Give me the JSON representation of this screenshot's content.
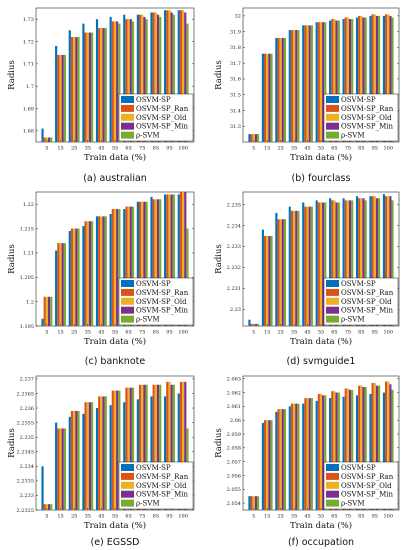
{
  "legend": [
    "OSVM-SP",
    "OSVM-SP_Ran",
    "OSVM-SP_Old",
    "OSVM-SP_Min",
    "ρ-SVM"
  ],
  "colors": [
    "#0072BD",
    "#D95319",
    "#EDB120",
    "#7E2F8E",
    "#77AC30"
  ],
  "chart_data": [
    {
      "type": "bar",
      "caption": "(a) australian",
      "xlabel": "Train data (%)",
      "ylabel": "Radius",
      "categories": [
        "5",
        "15",
        "25",
        "35",
        "45",
        "55",
        "65",
        "75",
        "85",
        "95",
        "100"
      ],
      "ylim": [
        1.675,
        1.735
      ],
      "yticks": [
        1.68,
        1.69,
        1.7,
        1.71,
        1.72,
        1.73
      ],
      "ytick_labels": [
        "1.68",
        "1.69",
        "1.7",
        "1.71",
        "1.72",
        "1.73"
      ],
      "series": [
        {
          "name": "OSVM-SP",
          "values": [
            1.681,
            1.718,
            1.725,
            1.728,
            1.73,
            1.731,
            1.732,
            1.732,
            1.733,
            1.734,
            1.734
          ]
        },
        {
          "name": "OSVM-SP_Ran",
          "values": [
            1.677,
            1.714,
            1.722,
            1.724,
            1.726,
            1.729,
            1.73,
            1.732,
            1.733,
            1.734,
            1.734
          ]
        },
        {
          "name": "OSVM-SP_Old",
          "values": [
            1.677,
            1.714,
            1.722,
            1.724,
            1.726,
            1.729,
            1.73,
            1.732,
            1.733,
            1.734,
            1.734
          ]
        },
        {
          "name": "OSVM-SP_Min",
          "values": [
            1.677,
            1.714,
            1.722,
            1.724,
            1.726,
            1.729,
            1.73,
            1.731,
            1.732,
            1.733,
            1.733
          ]
        },
        {
          "name": "ρ-SVM",
          "values": [
            1.677,
            1.714,
            1.722,
            1.724,
            1.726,
            1.728,
            1.729,
            1.73,
            1.731,
            1.732,
            1.728
          ]
        }
      ]
    },
    {
      "type": "bar",
      "caption": "(b) fourclass",
      "xlabel": "Train data (%)",
      "ylabel": "Radius",
      "categories": [
        "5",
        "15",
        "25",
        "35",
        "45",
        "55",
        "65",
        "75",
        "85",
        "95",
        "100"
      ],
      "ylim": [
        31.2,
        32.05
      ],
      "yticks": [
        31.3,
        31.4,
        31.5,
        31.6,
        31.7,
        31.8,
        31.9,
        32
      ],
      "ytick_labels": [
        "31.3",
        "31.4",
        "31.5",
        "31.6",
        "31.7",
        "31.8",
        "31.9",
        "32"
      ],
      "series": [
        {
          "name": "OSVM-SP",
          "values": [
            31.25,
            31.76,
            31.86,
            31.91,
            31.94,
            31.96,
            31.97,
            31.98,
            31.99,
            32.0,
            32.0
          ]
        },
        {
          "name": "OSVM-SP_Ran",
          "values": [
            31.25,
            31.76,
            31.86,
            31.91,
            31.94,
            31.96,
            31.98,
            31.99,
            32.0,
            32.01,
            32.01
          ]
        },
        {
          "name": "OSVM-SP_Old",
          "values": [
            31.25,
            31.76,
            31.86,
            31.91,
            31.94,
            31.96,
            31.98,
            31.99,
            32.0,
            32.01,
            32.01
          ]
        },
        {
          "name": "OSVM-SP_Min",
          "values": [
            31.25,
            31.76,
            31.86,
            31.91,
            31.94,
            31.96,
            31.97,
            31.98,
            31.99,
            32.0,
            32.0
          ]
        },
        {
          "name": "ρ-SVM",
          "values": [
            31.25,
            31.76,
            31.86,
            31.91,
            31.94,
            31.96,
            31.97,
            31.98,
            31.99,
            32.0,
            31.99
          ]
        }
      ]
    },
    {
      "type": "bar",
      "caption": "(c) banknote",
      "xlabel": "Train data (%)",
      "ylabel": "Radius",
      "categories": [
        "5",
        "15",
        "25",
        "35",
        "45",
        "55",
        "65",
        "75",
        "85",
        "95",
        "100"
      ],
      "ylim": [
        1.195,
        1.2225
      ],
      "yticks": [
        1.195,
        1.2,
        1.205,
        1.21,
        1.215,
        1.22
      ],
      "ytick_labels": [
        "1.195",
        "1.2",
        "1.205",
        "1.21",
        "1.215",
        "1.22"
      ],
      "series": [
        {
          "name": "OSVM-SP",
          "values": [
            1.1965,
            1.2105,
            1.2145,
            1.2155,
            1.2175,
            1.218,
            1.219,
            1.2205,
            1.2215,
            1.222,
            1.222
          ]
        },
        {
          "name": "OSVM-SP_Ran",
          "values": [
            1.201,
            1.212,
            1.215,
            1.2165,
            1.2175,
            1.219,
            1.2195,
            1.2205,
            1.221,
            1.222,
            1.2225
          ]
        },
        {
          "name": "OSVM-SP_Old",
          "values": [
            1.201,
            1.212,
            1.215,
            1.2165,
            1.2175,
            1.219,
            1.2195,
            1.2205,
            1.221,
            1.222,
            1.2225
          ]
        },
        {
          "name": "OSVM-SP_Min",
          "values": [
            1.201,
            1.212,
            1.215,
            1.2165,
            1.2175,
            1.219,
            1.2195,
            1.2205,
            1.221,
            1.222,
            1.2225
          ]
        },
        {
          "name": "ρ-SVM",
          "values": [
            1.201,
            1.212,
            1.215,
            1.2165,
            1.2175,
            1.219,
            1.2195,
            1.2205,
            1.221,
            1.222,
            1.215
          ]
        }
      ]
    },
    {
      "type": "bar",
      "caption": "(d) svmguide1",
      "xlabel": "Train data (%)",
      "ylabel": "Radius",
      "categories": [
        "5",
        "15",
        "25",
        "35",
        "45",
        "55",
        "65",
        "75",
        "85",
        "95",
        "100"
      ],
      "ylim": [
        2.2292,
        2.2356
      ],
      "yticks": [
        2.23,
        2.231,
        2.232,
        2.233,
        2.234,
        2.235
      ],
      "ytick_labels": [
        "2.23",
        "2.231",
        "2.232",
        "2.233",
        "2.234",
        "2.235"
      ],
      "series": [
        {
          "name": "OSVM-SP",
          "values": [
            2.2295,
            2.2338,
            2.2346,
            2.2349,
            2.2351,
            2.2352,
            2.2353,
            2.2353,
            2.2354,
            2.2354,
            2.2355
          ]
        },
        {
          "name": "OSVM-SP_Ran",
          "values": [
            2.2293,
            2.2335,
            2.2343,
            2.2347,
            2.2349,
            2.2351,
            2.2352,
            2.2352,
            2.2353,
            2.2354,
            2.2354
          ]
        },
        {
          "name": "OSVM-SP_Old",
          "values": [
            2.2293,
            2.2335,
            2.2343,
            2.2347,
            2.2349,
            2.2351,
            2.2352,
            2.2352,
            2.2353,
            2.2354,
            2.2354
          ]
        },
        {
          "name": "OSVM-SP_Min",
          "values": [
            2.2293,
            2.2335,
            2.2343,
            2.2347,
            2.2349,
            2.2351,
            2.2351,
            2.2352,
            2.2353,
            2.2353,
            2.2354
          ]
        },
        {
          "name": "ρ-SVM",
          "values": [
            2.2293,
            2.2335,
            2.2343,
            2.2347,
            2.2349,
            2.2351,
            2.2351,
            2.2352,
            2.2352,
            2.2353,
            2.2352
          ]
        }
      ]
    },
    {
      "type": "bar",
      "caption": "(e) EGSSD",
      "xlabel": "Train data (%)",
      "ylabel": "Radius",
      "categories": [
        "5",
        "15",
        "25",
        "35",
        "45",
        "55",
        "65",
        "75",
        "85",
        "95",
        "100"
      ],
      "ylim": [
        2.2325,
        2.2371
      ],
      "yticks": [
        2.2325,
        2.233,
        2.2335,
        2.234,
        2.2345,
        2.235,
        2.2355,
        2.236,
        2.2365,
        2.237
      ],
      "ytick_labels": [
        "2.2325",
        "2.233",
        "2.2335",
        "2.234",
        "2.2345",
        "2.235",
        "2.2355",
        "2.236",
        "2.2365",
        "2.237"
      ],
      "series": [
        {
          "name": "OSVM-SP",
          "values": [
            2.234,
            2.2355,
            2.2357,
            2.2358,
            2.236,
            2.2361,
            2.2362,
            2.2363,
            2.2364,
            2.2364,
            2.2365
          ]
        },
        {
          "name": "OSVM-SP_Ran",
          "values": [
            2.2327,
            2.2353,
            2.2359,
            2.2362,
            2.2364,
            2.2366,
            2.2367,
            2.2368,
            2.2368,
            2.2369,
            2.2369
          ]
        },
        {
          "name": "OSVM-SP_Old",
          "values": [
            2.2327,
            2.2353,
            2.2359,
            2.2362,
            2.2364,
            2.2366,
            2.2367,
            2.2368,
            2.2368,
            2.2369,
            2.2369
          ]
        },
        {
          "name": "OSVM-SP_Min",
          "values": [
            2.2327,
            2.2353,
            2.2359,
            2.2362,
            2.2364,
            2.2366,
            2.2367,
            2.2368,
            2.2368,
            2.2368,
            2.2369
          ]
        },
        {
          "name": "ρ-SVM",
          "values": [
            2.2327,
            2.2353,
            2.2359,
            2.2362,
            2.2364,
            2.2366,
            2.2367,
            2.2368,
            2.2368,
            2.2368,
            2.2353
          ]
        }
      ]
    },
    {
      "type": "bar",
      "caption": "(f) occupation",
      "xlabel": "Train data (%)",
      "ylabel": "Radius",
      "categories": [
        "5",
        "15",
        "25",
        "35",
        "45",
        "55",
        "65",
        "75",
        "85",
        "95",
        "100"
      ],
      "ylim": [
        2.0535,
        2.0632
      ],
      "yticks": [
        2.054,
        2.055,
        2.056,
        2.057,
        2.058,
        2.059,
        2.06,
        2.061,
        2.062,
        2.063
      ],
      "ytick_labels": [
        "2.054",
        "2.055",
        "2.056",
        "2.057",
        "2.058",
        "2.059",
        "2.06",
        "2.061",
        "2.062",
        "2.063"
      ],
      "series": [
        {
          "name": "OSVM-SP",
          "values": [
            2.0545,
            2.0598,
            2.0606,
            2.061,
            2.0612,
            2.0614,
            2.0616,
            2.0617,
            2.0618,
            2.0619,
            2.062
          ]
        },
        {
          "name": "OSVM-SP_Ran",
          "values": [
            2.0545,
            2.06,
            2.0608,
            2.0612,
            2.0616,
            2.0619,
            2.0621,
            2.0623,
            2.0625,
            2.0627,
            2.0628
          ]
        },
        {
          "name": "OSVM-SP_Old",
          "values": [
            2.0545,
            2.06,
            2.0608,
            2.0612,
            2.0616,
            2.0619,
            2.0621,
            2.0623,
            2.0625,
            2.0627,
            2.0628
          ]
        },
        {
          "name": "OSVM-SP_Min",
          "values": [
            2.0545,
            2.06,
            2.0608,
            2.0612,
            2.0616,
            2.0618,
            2.062,
            2.0622,
            2.0624,
            2.0625,
            2.0626
          ]
        },
        {
          "name": "ρ-SVM",
          "values": [
            2.0545,
            2.06,
            2.0608,
            2.0612,
            2.0616,
            2.0618,
            2.062,
            2.0622,
            2.0624,
            2.0625,
            2.0622
          ]
        }
      ]
    }
  ]
}
